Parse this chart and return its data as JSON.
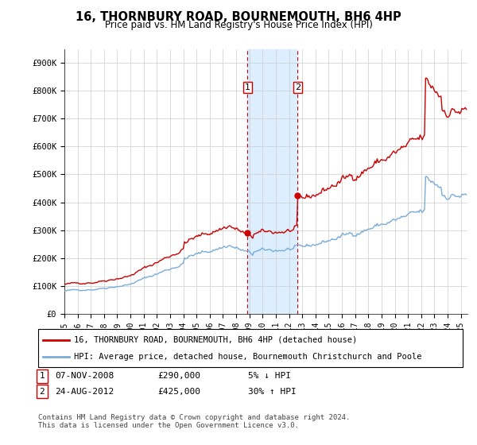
{
  "title": "16, THORNBURY ROAD, BOURNEMOUTH, BH6 4HP",
  "subtitle": "Price paid vs. HM Land Registry's House Price Index (HPI)",
  "ylabel_ticks": [
    "£0",
    "£100K",
    "£200K",
    "£300K",
    "£400K",
    "£500K",
    "£600K",
    "£700K",
    "£800K",
    "£900K"
  ],
  "ytick_values": [
    0,
    100000,
    200000,
    300000,
    400000,
    500000,
    600000,
    700000,
    800000,
    900000
  ],
  "ylim": [
    0,
    950000
  ],
  "xlim_start": 1995.0,
  "xlim_end": 2025.5,
  "transaction1_x": 2008.85,
  "transaction1_y": 290000,
  "transaction2_x": 2012.65,
  "transaction2_y": 425000,
  "red_line_color": "#cc0000",
  "blue_line_color": "#7aacda",
  "highlight_color": "#ddeeff",
  "vline_color": "#cc0000",
  "grid_color": "#cccccc",
  "background_color": "#ffffff",
  "legend_line1": "16, THORNBURY ROAD, BOURNEMOUTH, BH6 4HP (detached house)",
  "legend_line2": "HPI: Average price, detached house, Bournemouth Christchurch and Poole",
  "transaction1_date": "07-NOV-2008",
  "transaction1_price": "£290,000",
  "transaction1_hpi": "5% ↓ HPI",
  "transaction2_date": "24-AUG-2012",
  "transaction2_price": "£425,000",
  "transaction2_hpi": "30% ↑ HPI",
  "footnote": "Contains HM Land Registry data © Crown copyright and database right 2024.\nThis data is licensed under the Open Government Licence v3.0.",
  "xtick_years": [
    1995,
    1996,
    1997,
    1998,
    1999,
    2000,
    2001,
    2002,
    2003,
    2004,
    2005,
    2006,
    2007,
    2008,
    2009,
    2010,
    2011,
    2012,
    2013,
    2014,
    2015,
    2016,
    2017,
    2018,
    2019,
    2020,
    2021,
    2022,
    2023,
    2024,
    2025
  ]
}
